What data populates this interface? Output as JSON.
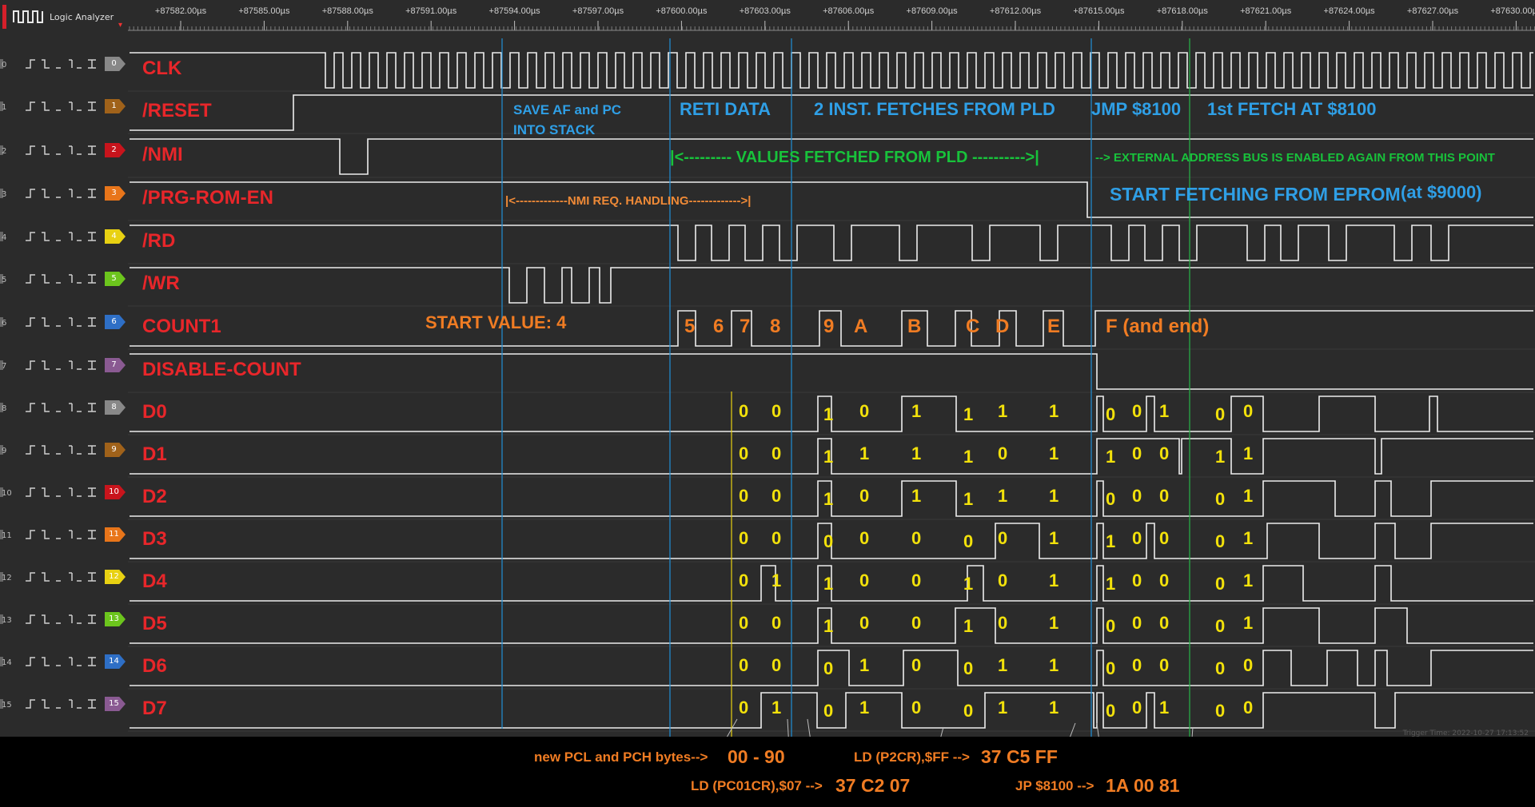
{
  "app": {
    "title": "Logic Analyzer",
    "ruler_ticks": [
      "+87582.00µs",
      "+87585.00µs",
      "+87588.00µs",
      "+87591.00µs",
      "+87594.00µs",
      "+87597.00µs",
      "+87600.00µs",
      "+87603.00µs",
      "+87606.00µs",
      "+87609.00µs",
      "+87612.00µs",
      "+87615.00µs",
      "+87618.00µs",
      "+87621.00µs",
      "+87624.00µs",
      "+87627.00µs",
      "+87630.00µs"
    ],
    "trigger_time": "Trigger Time: 2022-10-27 17:13:52"
  },
  "channels": [
    {
      "idx": "0",
      "name": "CLK",
      "color": "#888888"
    },
    {
      "idx": "1",
      "name": "/RESET",
      "color": "#a0621a"
    },
    {
      "idx": "2",
      "name": "/NMI",
      "color": "#c8141c"
    },
    {
      "idx": "3",
      "name": "/PRG-ROM-EN",
      "color": "#e8751a"
    },
    {
      "idx": "4",
      "name": "/RD",
      "color": "#e8d112"
    },
    {
      "idx": "5",
      "name": "/WR",
      "color": "#6cc51d"
    },
    {
      "idx": "6",
      "name": "COUNT1",
      "color": "#2e6fc6"
    },
    {
      "idx": "7",
      "name": "DISABLE-COUNT",
      "color": "#8a5a92"
    },
    {
      "idx": "8",
      "name": "D0",
      "color": "#888888"
    },
    {
      "idx": "9",
      "name": "D1",
      "color": "#a0621a"
    },
    {
      "idx": "10",
      "name": "D2",
      "color": "#c8141c"
    },
    {
      "idx": "11",
      "name": "D3",
      "color": "#e8751a"
    },
    {
      "idx": "12",
      "name": "D4",
      "color": "#e8d112"
    },
    {
      "idx": "13",
      "name": "D5",
      "color": "#6cc51d"
    },
    {
      "idx": "14",
      "name": "D6",
      "color": "#2e6fc6"
    },
    {
      "idx": "15",
      "name": "D7",
      "color": "#8a5a92"
    }
  ],
  "annotations": {
    "save_af_1": "SAVE AF and PC",
    "save_af_2": "INTO STACK",
    "reti": "RETI DATA",
    "fetches": "2 INST. FETCHES FROM PLD",
    "jmp": "JMP $8100",
    "first_fetch": "1st FETCH AT $8100",
    "values_fetched": "|<--------- VALUES FETCHED FROM PLD ---------->|",
    "ext_bus": "--> EXTERNAL ADDRESS BUS IS ENABLED AGAIN FROM THIS POINT",
    "nmi_handling": "|<-------------NMI REQ. HANDLING------------->|",
    "start_fetching": "START FETCHING FROM EPROM",
    "at_9000": "(at $9000)",
    "start_value": "START VALUE: 4",
    "new_pcl": "new PCL and PCH bytes-->",
    "pcl_val": "00 - 90",
    "ld_pc01cr": "LD (PC01CR),$07 -->",
    "ld_pc01cr_val": "37 C2 07",
    "ld_p2cr": "LD (P2CR),$FF  -->",
    "ld_p2cr_val": "37 C5 FF",
    "jp": "JP $8100 -->",
    "jp_val": "1A 00 81"
  },
  "count_values": [
    "5",
    "6",
    "7",
    "8",
    "9",
    "A",
    "B",
    "C",
    "D",
    "E",
    "F (and end)"
  ],
  "bit_values": {
    "D0": [
      "0",
      "0",
      "1",
      "0",
      "1",
      "1",
      "1",
      "1",
      "0",
      "0",
      "1",
      "0",
      "0"
    ],
    "D1": [
      "0",
      "0",
      "1",
      "1",
      "1",
      "1",
      "0",
      "1",
      "1",
      "0",
      "0",
      "1",
      "1"
    ],
    "D2": [
      "0",
      "0",
      "1",
      "0",
      "1",
      "1",
      "1",
      "1",
      "0",
      "0",
      "0",
      "0",
      "1"
    ],
    "D3": [
      "0",
      "0",
      "0",
      "0",
      "0",
      "0",
      "0",
      "1",
      "1",
      "0",
      "0",
      "0",
      "1"
    ],
    "D4": [
      "0",
      "1",
      "1",
      "0",
      "0",
      "1",
      "0",
      "1",
      "1",
      "0",
      "0",
      "0",
      "1"
    ],
    "D5": [
      "0",
      "0",
      "1",
      "0",
      "0",
      "1",
      "0",
      "1",
      "0",
      "0",
      "0",
      "0",
      "1"
    ],
    "D6": [
      "0",
      "0",
      "0",
      "1",
      "0",
      "0",
      "1",
      "1",
      "0",
      "0",
      "0",
      "0",
      "0"
    ],
    "D7": [
      "0",
      "1",
      "0",
      "1",
      "0",
      "0",
      "1",
      "1",
      "0",
      "0",
      "1",
      "0",
      "0"
    ]
  }
}
